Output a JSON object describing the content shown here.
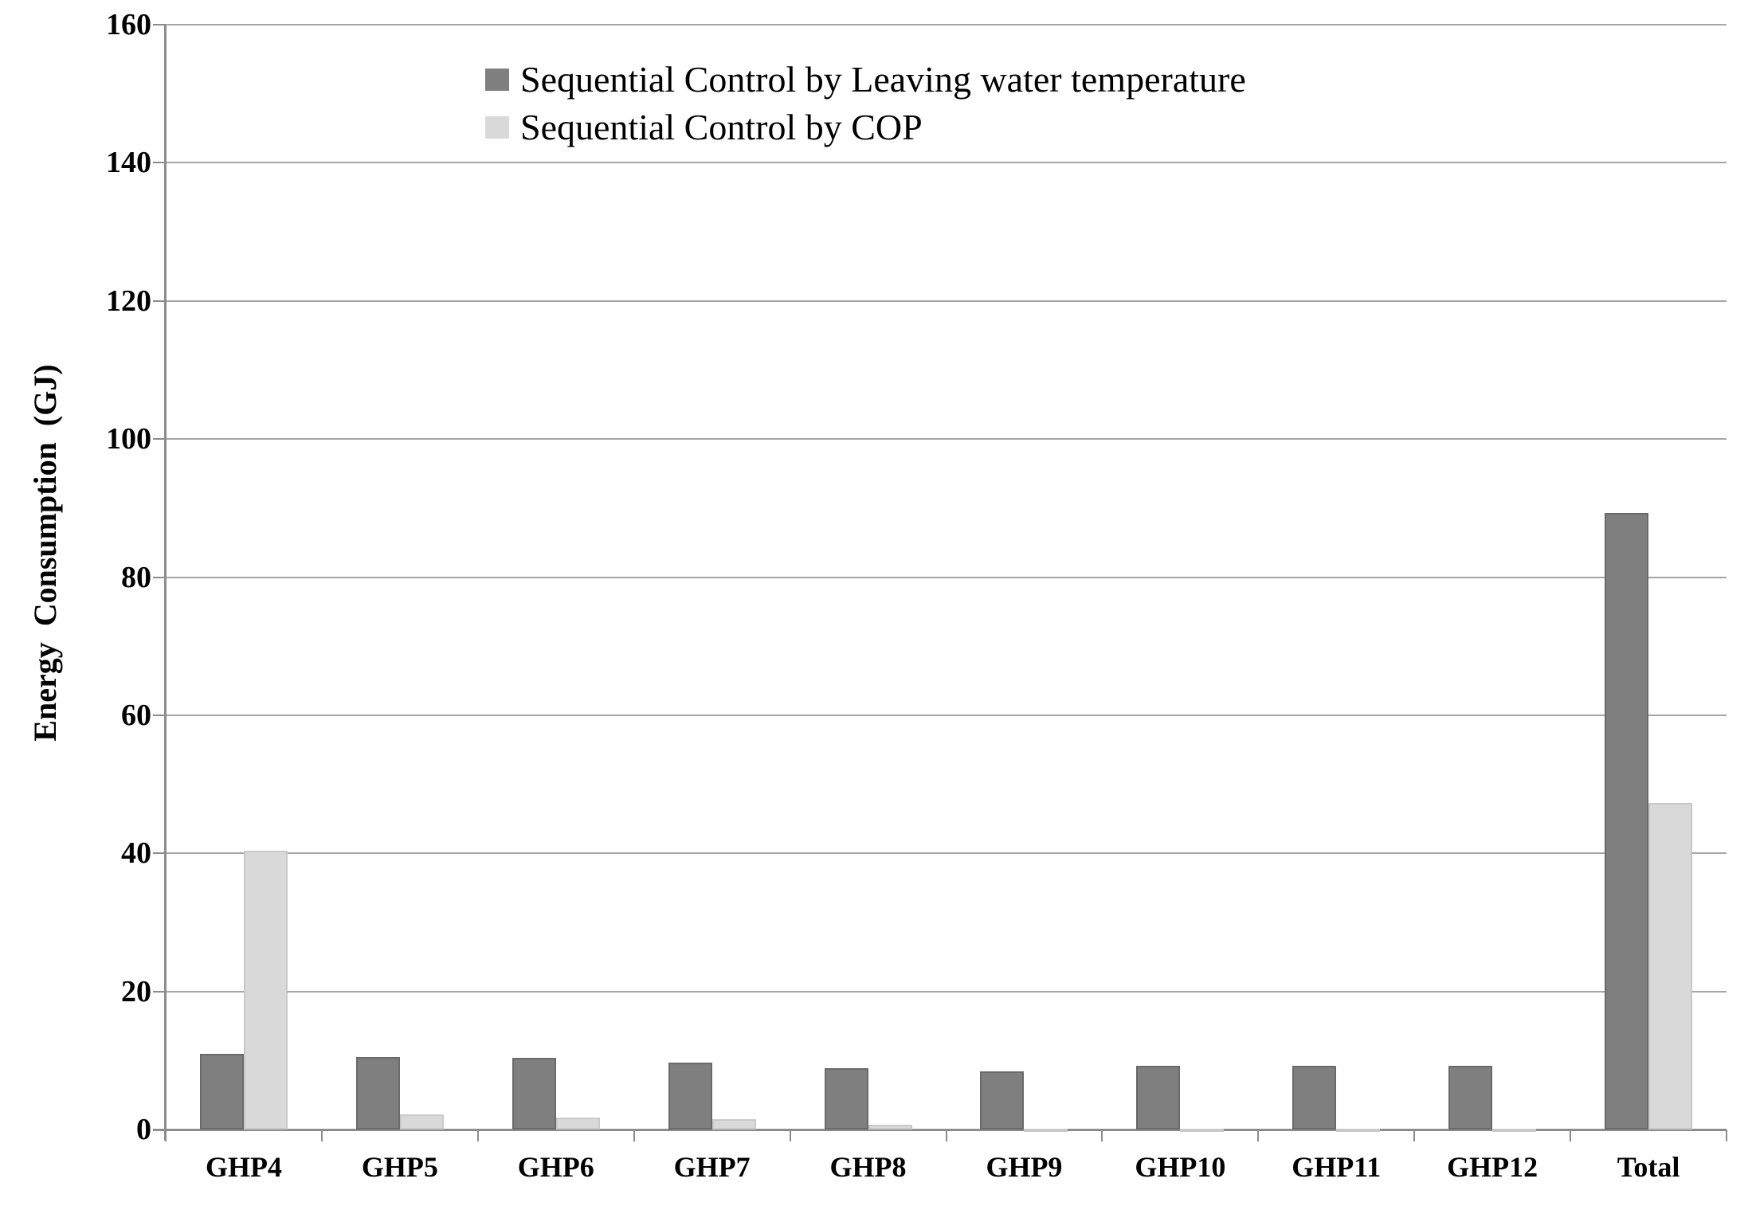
{
  "chart_data": {
    "type": "bar",
    "title": "",
    "categories": [
      "GHP4",
      "GHP5",
      "GHP6",
      "GHP7",
      "GHP8",
      "GHP9",
      "GHP10",
      "GHP11",
      "GHP12",
      "Total"
    ],
    "series": [
      {
        "name": "Sequential Control by Leaving water temperature",
        "color": "#7f7f7f",
        "values": [
          11.0,
          10.5,
          10.4,
          9.7,
          8.9,
          8.4,
          9.2,
          9.2,
          9.2,
          89.3
        ]
      },
      {
        "name": "Sequential Control by COP",
        "color": "#d9d9d9",
        "values": [
          40.4,
          2.2,
          1.7,
          1.5,
          0.7,
          0.1,
          0.1,
          0.1,
          0.1,
          47.3
        ]
      }
    ],
    "xlabel": "",
    "ylabel": "Energy Consumption (GJ)",
    "ylim": [
      0,
      160
    ],
    "yticks": [
      0,
      20,
      40,
      60,
      80,
      100,
      120,
      140,
      160
    ],
    "grid": "horizontal gridlines at every y tick",
    "legend_position": "inside top, left-aligned, two rows"
  },
  "colors": {
    "grid": "#a6a6a6",
    "axis": "#8c8c8c",
    "text": "#000000",
    "background": "#ffffff"
  }
}
